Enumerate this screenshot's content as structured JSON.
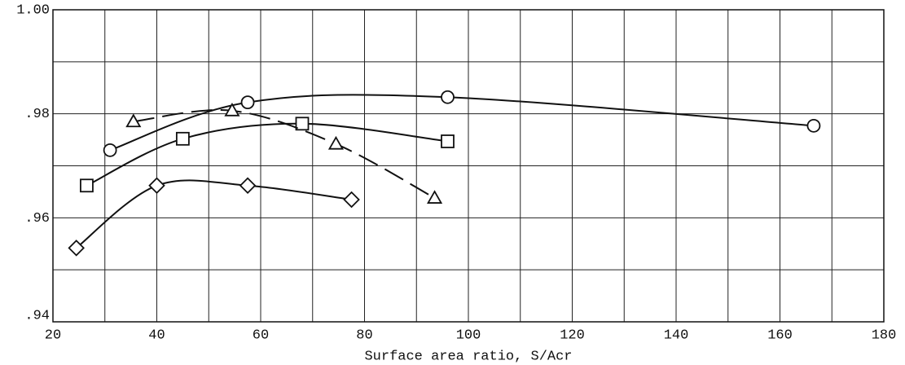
{
  "chart_data": {
    "type": "line",
    "xlabel": "Surface area ratio, S/Acr",
    "xlim": [
      20,
      180
    ],
    "ylim": [
      0.94,
      1.0
    ],
    "xticks": [
      20,
      40,
      60,
      80,
      100,
      120,
      140,
      160,
      180
    ],
    "yticks": [
      {
        "value": 0.94,
        "label": ".94"
      },
      {
        "value": 0.96,
        "label": ".96"
      },
      {
        "value": 0.98,
        "label": ".98"
      },
      {
        "value": 1.0,
        "label": "1.00"
      }
    ],
    "grid": true,
    "series": [
      {
        "marker": "circle",
        "dash": false,
        "color": "#111",
        "x": [
          31,
          57.5,
          96,
          166.5
        ],
        "values": [
          0.973,
          0.9822,
          0.9832,
          0.9777
        ]
      },
      {
        "marker": "square",
        "dash": false,
        "color": "#111",
        "x": [
          26.5,
          45,
          68,
          96
        ],
        "values": [
          0.9662,
          0.9752,
          0.9781,
          0.9747
        ]
      },
      {
        "marker": "triangle",
        "dash": true,
        "color": "#111",
        "x": [
          35.5,
          54.5,
          74.5,
          93.5
        ],
        "values": [
          0.9785,
          0.9806,
          0.9742,
          0.9638
        ]
      },
      {
        "marker": "diamond",
        "dash": false,
        "color": "#111",
        "x": [
          24.5,
          40,
          57.5,
          77.5
        ],
        "values": [
          0.9542,
          0.9662,
          0.9662,
          0.9635
        ]
      }
    ]
  }
}
